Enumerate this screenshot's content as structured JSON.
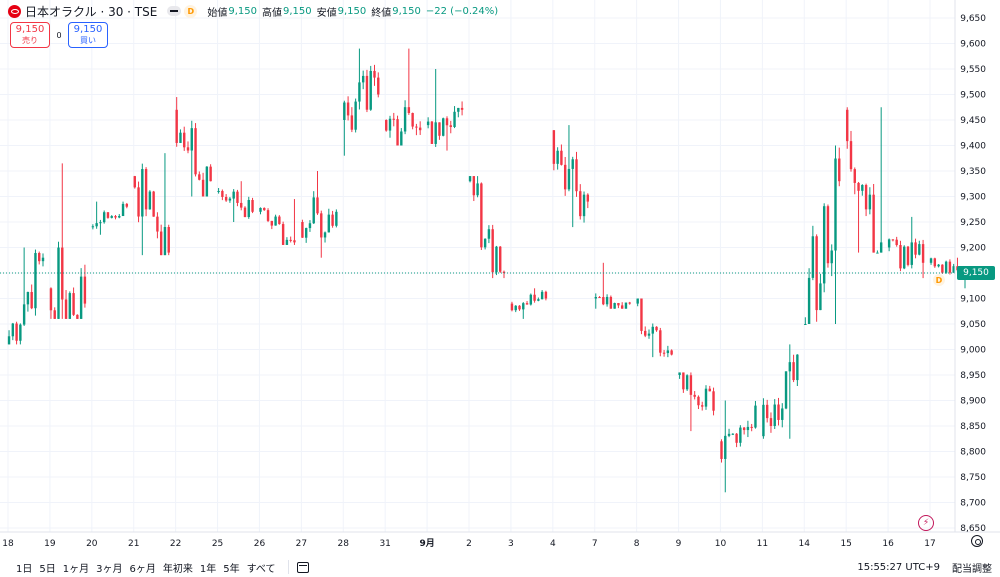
{
  "legend": {
    "symbol": "日本オラクル · 30 · TSE",
    "badge": "D",
    "open_label": "始値",
    "open": "9,150",
    "high_label": "高値",
    "high": "9,150",
    "low_label": "安値",
    "low": "9,150",
    "close_label": "終値",
    "close": "9,150",
    "change": "−22 (−0.24%)"
  },
  "trade": {
    "sell_price": "9,150",
    "sell_label": "売り",
    "spread": "0",
    "buy_price": "9,150",
    "buy_label": "買い"
  },
  "toolbar": {
    "ranges": [
      "1日",
      "5日",
      "1ヶ月",
      "3ヶ月",
      "6ヶ月",
      "年初来",
      "1年",
      "5年",
      "すべて"
    ],
    "clock": "15:55:27 UTC+9",
    "adjust": "配当調整"
  },
  "last_price_label": "9,150",
  "d_marker": "D",
  "icons": {
    "logo": "oracle-logo",
    "settings": "gear-icon",
    "calendar": "calendar-icon",
    "bolt": "lightning-icon"
  },
  "colors": {
    "up": "#089981",
    "down": "#f23645",
    "grid": "#f0f3fa",
    "axis_text": "#131722"
  },
  "chart_data": {
    "type": "candlestick",
    "interval": "30",
    "x_ticks": [
      "18",
      "19",
      "20",
      "21",
      "22",
      "25",
      "26",
      "27",
      "28",
      "31",
      "9月",
      "2",
      "3",
      "4",
      "7",
      "8",
      "9",
      "10",
      "11",
      "14",
      "15",
      "16",
      "17"
    ],
    "y_ticks": [
      "9,650",
      "9,600",
      "9,550",
      "9,500",
      "9,450",
      "9,400",
      "9,350",
      "9,300",
      "9,250",
      "9,200",
      "9,150",
      "9,100",
      "9,050",
      "9,000",
      "8,950",
      "8,900",
      "8,850",
      "8,800",
      "8,750",
      "8,700",
      "8,650"
    ],
    "ylim": [
      8640,
      9680
    ],
    "last_price": 9150,
    "days": [
      {
        "day": "18",
        "open": 9010,
        "close": 9180,
        "high": 9200,
        "low": 9010
      },
      {
        "day": "19",
        "open": 9120,
        "close": 9090,
        "high": 9365,
        "low": 9060
      },
      {
        "day": "20",
        "open": 9240,
        "close": 9280,
        "high": 9290,
        "low": 9225
      },
      {
        "day": "21",
        "open": 9340,
        "close": 9190,
        "high": 9385,
        "low": 9185
      },
      {
        "day": "22",
        "open": 9470,
        "close": 9330,
        "high": 9495,
        "low": 9300
      },
      {
        "day": "25",
        "open": 9310,
        "close": 9270,
        "high": 9330,
        "low": 9250
      },
      {
        "day": "26",
        "open": 9270,
        "close": 9210,
        "high": 9295,
        "low": 9205
      },
      {
        "day": "27",
        "open": 9250,
        "close": 9270,
        "high": 9350,
        "low": 9180
      },
      {
        "day": "28",
        "open": 9450,
        "close": 9500,
        "high": 9590,
        "low": 9380
      },
      {
        "day": "31",
        "open": 9450,
        "close": 9430,
        "high": 9590,
        "low": 9400
      },
      {
        "day": "9月",
        "open": 9440,
        "close": 9470,
        "high": 9550,
        "low": 9390
      },
      {
        "day": "2",
        "open": 9330,
        "close": 9150,
        "high": 9340,
        "low": 9140
      },
      {
        "day": "3",
        "open": 9090,
        "close": 9100,
        "high": 9120,
        "low": 9060
      },
      {
        "day": "4",
        "open": 9430,
        "close": 9290,
        "high": 9440,
        "low": 9240
      },
      {
        "day": "7",
        "open": 9100,
        "close": 9090,
        "high": 9170,
        "low": 9080
      },
      {
        "day": "8",
        "open": 9090,
        "close": 8990,
        "high": 9100,
        "low": 8985
      },
      {
        "day": "9",
        "open": 8950,
        "close": 8880,
        "high": 8955,
        "low": 8840
      },
      {
        "day": "10",
        "open": 8820,
        "close": 8890,
        "high": 8900,
        "low": 8720
      },
      {
        "day": "11",
        "open": 8830,
        "close": 8990,
        "high": 9010,
        "low": 8825
      },
      {
        "day": "14",
        "open": 9050,
        "close": 9330,
        "high": 9400,
        "low": 9050
      },
      {
        "day": "15",
        "open": 9470,
        "close": 9210,
        "high": 9475,
        "low": 9190
      },
      {
        "day": "16",
        "open": 9200,
        "close": 9170,
        "high": 9260,
        "low": 9140
      },
      {
        "day": "17",
        "open": 9170,
        "close": 9150,
        "high": 9180,
        "low": 9120
      }
    ]
  }
}
